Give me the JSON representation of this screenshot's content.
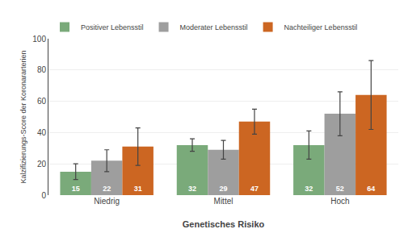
{
  "chart_data": {
    "type": "bar",
    "xlabel": "Genetisches Risiko",
    "ylabel": "Kalzifizierungs-Score der Koronararterien",
    "categories": [
      "Niedrig",
      "Mittel",
      "Hoch"
    ],
    "series": [
      {
        "name": "Positiver Lebensstil",
        "color": "#7aaa7a",
        "values": [
          15,
          32,
          32
        ],
        "errors": [
          5,
          4,
          9
        ]
      },
      {
        "name": "Moderater Lebensstil",
        "color": "#9e9e9e",
        "values": [
          22,
          29,
          52
        ],
        "errors": [
          7,
          6,
          14
        ]
      },
      {
        "name": "Nachteiliger Lebensstil",
        "color": "#cc6622",
        "values": [
          31,
          47,
          64
        ],
        "errors": [
          12,
          8,
          22
        ]
      }
    ],
    "ylim": [
      0,
      100
    ],
    "yticks": [
      0,
      20,
      40,
      60,
      80,
      100
    ],
    "grid": true,
    "legend": "upper left",
    "data_labels": true
  }
}
